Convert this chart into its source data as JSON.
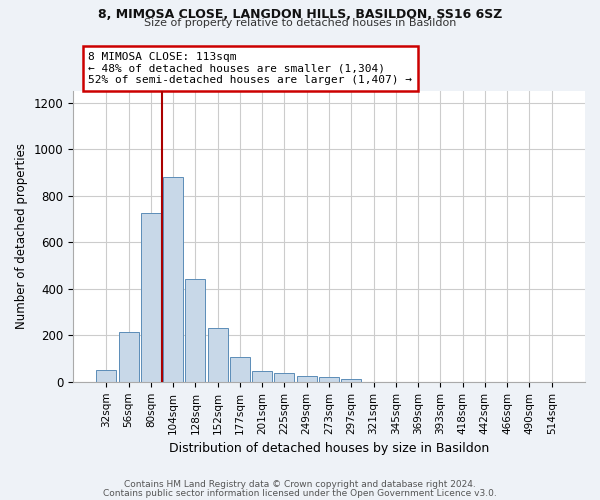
{
  "title1": "8, MIMOSA CLOSE, LANGDON HILLS, BASILDON, SS16 6SZ",
  "title2": "Size of property relative to detached houses in Basildon",
  "xlabel": "Distribution of detached houses by size in Basildon",
  "ylabel": "Number of detached properties",
  "categories": [
    "32sqm",
    "56sqm",
    "80sqm",
    "104sqm",
    "128sqm",
    "152sqm",
    "177sqm",
    "201sqm",
    "225sqm",
    "249sqm",
    "273sqm",
    "297sqm",
    "321sqm",
    "345sqm",
    "369sqm",
    "393sqm",
    "418sqm",
    "442sqm",
    "466sqm",
    "490sqm",
    "514sqm"
  ],
  "values": [
    50,
    215,
    725,
    880,
    440,
    232,
    107,
    47,
    38,
    27,
    20,
    10,
    0,
    0,
    0,
    0,
    0,
    0,
    0,
    0,
    0
  ],
  "bar_color": "#c8d8e8",
  "bar_edge_color": "#5b8db8",
  "vline_x": 2.5,
  "vline_color": "#aa0000",
  "annotation_text": "8 MIMOSA CLOSE: 113sqm\n← 48% of detached houses are smaller (1,304)\n52% of semi-detached houses are larger (1,407) →",
  "annotation_box_color": "#ffffff",
  "annotation_box_edge": "#cc0000",
  "ylim": [
    0,
    1250
  ],
  "yticks": [
    0,
    200,
    400,
    600,
    800,
    1000,
    1200
  ],
  "footer_line1": "Contains HM Land Registry data © Crown copyright and database right 2024.",
  "footer_line2": "Contains public sector information licensed under the Open Government Licence v3.0.",
  "bg_color": "#eef2f7",
  "plot_bg_color": "#ffffff",
  "grid_color": "#cccccc"
}
